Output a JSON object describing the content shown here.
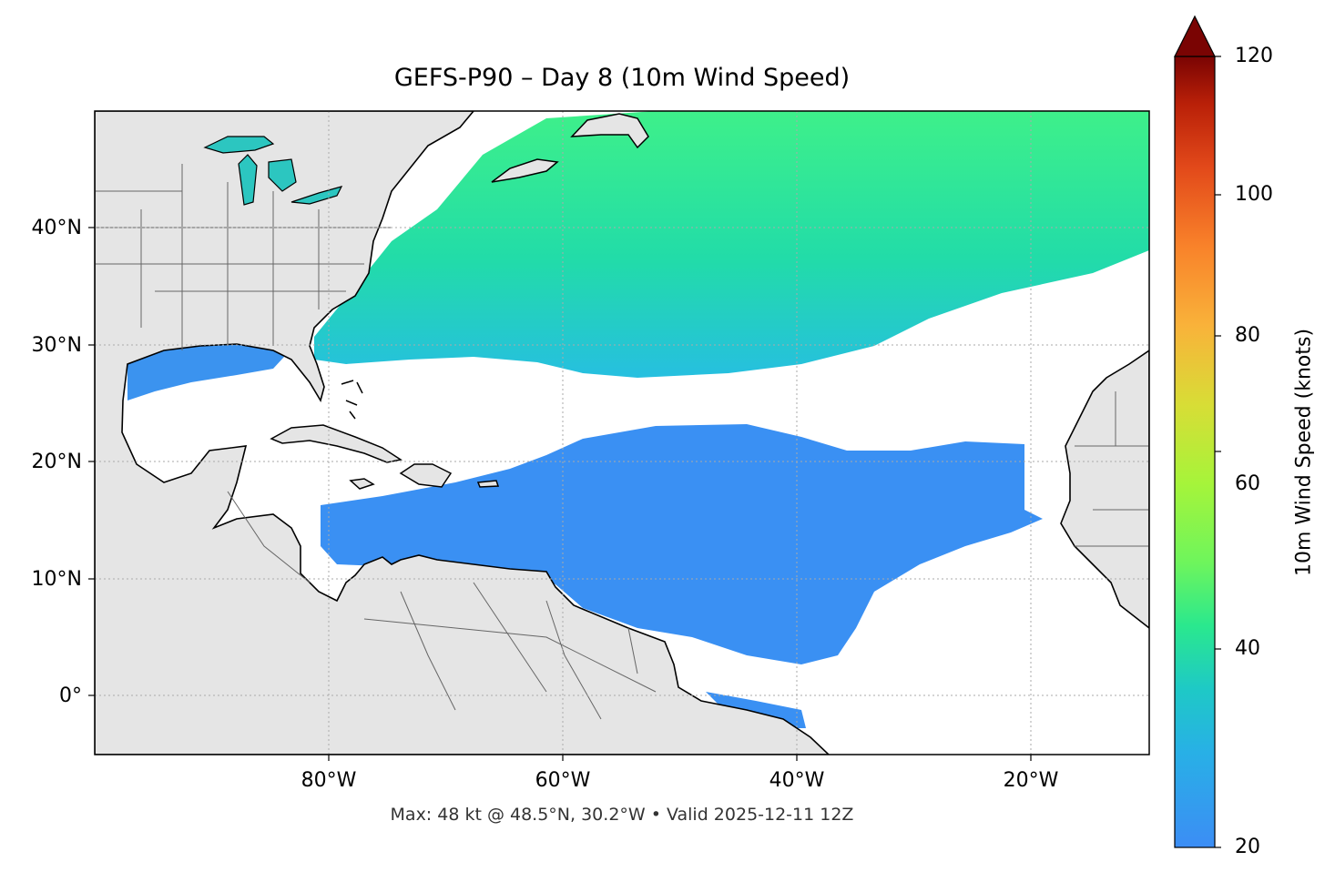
{
  "title": "GEFS-P90 – Day 8 (10m Wind Speed)",
  "footer": "Max: 48 kt @ 48.5°N, 30.2°W • Valid 2025-12-11 12Z",
  "map": {
    "lat_labels": [
      "40°N",
      "30°N",
      "20°N",
      "10°N",
      "0°"
    ],
    "lon_labels": [
      "80°W",
      "60°W",
      "40°W",
      "20°W"
    ],
    "land_color": "#e5e5e5",
    "coast_color": "#000000",
    "border_color": "#666666",
    "gridline_color": "#aaaaaa"
  },
  "colorbar": {
    "label": "10m Wind Speed (knots)",
    "ticks": [
      "20",
      "40",
      "60",
      "80",
      "100",
      "120"
    ],
    "colormap": "turbo",
    "extend": "max"
  }
}
